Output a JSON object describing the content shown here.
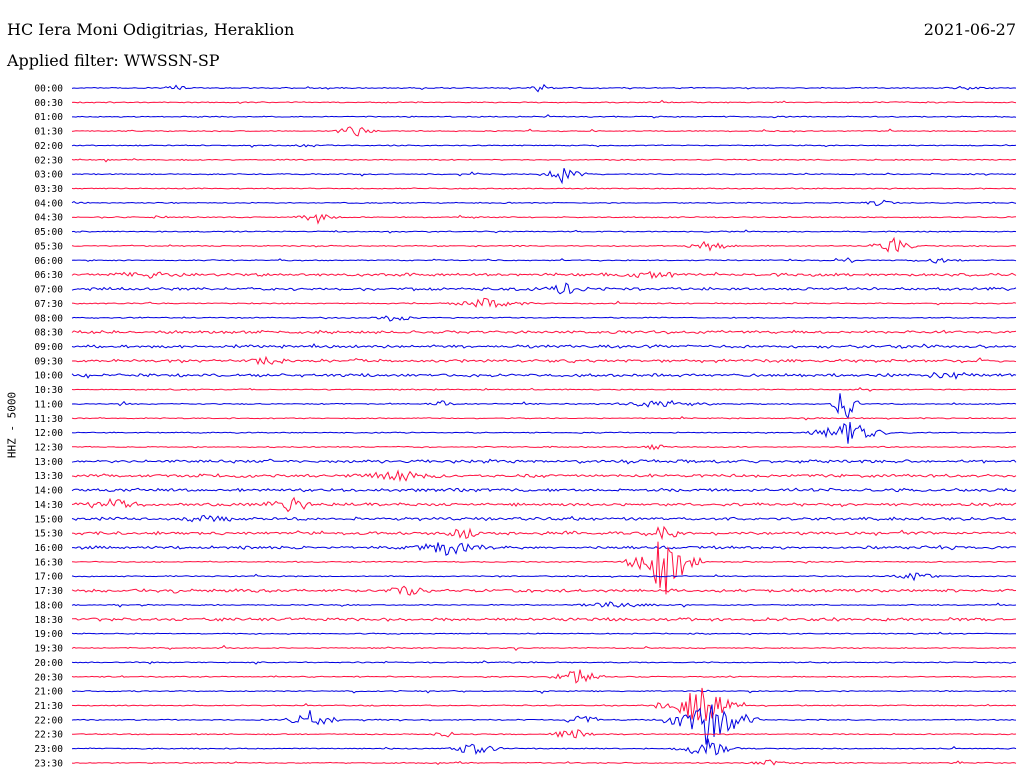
{
  "header": {
    "station": "HC Iera Moni Odigitrias, Heraklion",
    "date": "2021-06-27",
    "filter": "Applied filter: WWSSN-SP"
  },
  "colors": {
    "even_trace": "#0000e0",
    "odd_trace": "#ff1040"
  },
  "chart_data": {
    "type": "line",
    "title": "HC Iera Moni Odigitrias, Heraklion",
    "subtitle": "Applied filter: WWSSN-SP",
    "date": "2021-06-27",
    "ylabel": "HHZ - 5000",
    "xlabel": "",
    "categories": [
      "00:00",
      "00:30",
      "01:00",
      "01:30",
      "02:00",
      "02:30",
      "03:00",
      "03:30",
      "04:00",
      "04:30",
      "05:00",
      "05:30",
      "06:00",
      "06:30",
      "07:00",
      "07:30",
      "08:00",
      "08:30",
      "09:00",
      "09:30",
      "10:00",
      "10:30",
      "11:00",
      "11:30",
      "12:00",
      "12:30",
      "13:00",
      "13:30",
      "14:00",
      "14:30",
      "15:00",
      "15:30",
      "16:00",
      "16:30",
      "17:00",
      "17:30",
      "18:00",
      "18:30",
      "19:00",
      "19:30",
      "20:00",
      "20:30",
      "21:00",
      "21:30",
      "22:00",
      "22:30",
      "23:00",
      "23:30"
    ],
    "series_colors": [
      "#0000e0",
      "#ff1040"
    ],
    "x_range_minutes": [
      0,
      30
    ],
    "grid": false
  }
}
